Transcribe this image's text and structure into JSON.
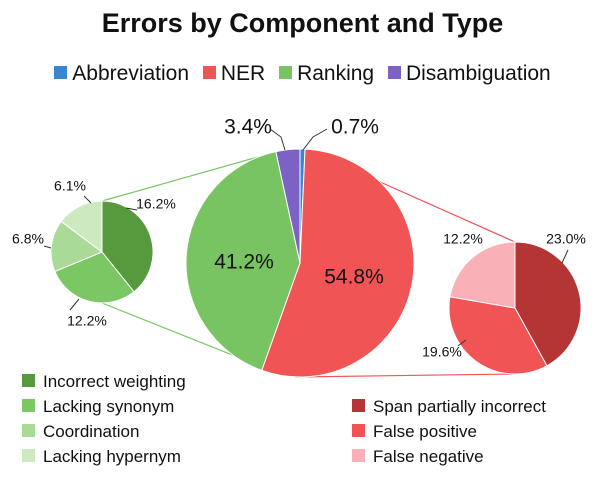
{
  "chart_data": {
    "type": "pie",
    "title": "Errors by Component and Type",
    "main": {
      "legend": [
        "Abbreviation",
        "NER",
        "Ranking",
        "Disambiguation"
      ],
      "slices": [
        {
          "name": "NER",
          "value": 54.8,
          "label": "54.8%",
          "color": "#f05454"
        },
        {
          "name": "Ranking",
          "value": 41.2,
          "label": "41.2%",
          "color": "#79c462"
        },
        {
          "name": "Disambiguation",
          "value": 3.4,
          "label": "3.4%",
          "color": "#7b62c4"
        },
        {
          "name": "Abbreviation",
          "value": 0.7,
          "label": "0.7%",
          "color": "#3a85d0"
        }
      ]
    },
    "ranking_breakdown": {
      "slices": [
        {
          "name": "Incorrect weighting",
          "label": "16.2%",
          "value": 16.2,
          "color": "#579a3e"
        },
        {
          "name": "Lacking synonym",
          "label": "12.2%",
          "value": 12.2,
          "color": "#7bc764"
        },
        {
          "name": "Coordination",
          "label": "6.8%",
          "value": 6.8,
          "color": "#a9da98"
        },
        {
          "name": "Lacking hypernym",
          "label": "6.1%",
          "value": 6.1,
          "color": "#cce9c0"
        }
      ]
    },
    "ner_breakdown": {
      "slices": [
        {
          "name": "Span partially incorrect",
          "label": "23.0%",
          "value": 23.0,
          "color": "#b53434"
        },
        {
          "name": "False positive",
          "label": "19.6%",
          "value": 19.6,
          "color": "#f05454"
        },
        {
          "name": "False negative",
          "label": "12.2%",
          "value": 12.2,
          "color": "#f9b1b7"
        }
      ]
    }
  },
  "legend_left": [
    {
      "label": "Incorrect weighting",
      "color": "#579a3e"
    },
    {
      "label": "Lacking synonym",
      "color": "#7bc764"
    },
    {
      "label": "Coordination",
      "color": "#a9da98"
    },
    {
      "label": "Lacking hypernym",
      "color": "#cce9c0"
    }
  ],
  "legend_right": [
    {
      "label": "Span partially incorrect",
      "color": "#b53434"
    },
    {
      "label": "False positive",
      "color": "#f05454"
    },
    {
      "label": "False negative",
      "color": "#f9b1b7"
    }
  ]
}
